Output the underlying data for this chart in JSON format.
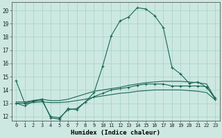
{
  "title": "",
  "xlabel": "Humidex (Indice chaleur)",
  "background_color": "#cce8e0",
  "grid_color": "#aad4cc",
  "line_color": "#1a6655",
  "xlim": [
    -0.5,
    23.5
  ],
  "ylim": [
    11.7,
    20.6
  ],
  "yticks": [
    12,
    13,
    14,
    15,
    16,
    17,
    18,
    19,
    20
  ],
  "xtick_labels": [
    "0",
    "1",
    "2",
    "3",
    "4",
    "5",
    "6",
    "7",
    "8",
    "9",
    "10",
    "11",
    "12",
    "13",
    "14",
    "15",
    "16",
    "17",
    "18",
    "19",
    "20",
    "21",
    "22",
    "23"
  ],
  "series1_x": [
    0,
    1,
    2,
    3,
    4,
    5,
    6,
    7,
    8,
    9,
    10,
    11,
    12,
    13,
    14,
    15,
    16,
    17,
    18,
    19,
    20,
    21,
    22,
    23
  ],
  "series1_y": [
    14.7,
    13.0,
    13.2,
    13.3,
    11.9,
    11.8,
    12.6,
    12.5,
    13.1,
    13.8,
    15.8,
    18.1,
    19.2,
    19.5,
    20.2,
    20.1,
    19.6,
    18.7,
    15.7,
    15.2,
    14.5,
    14.6,
    14.2,
    13.4
  ],
  "series2_x": [
    0,
    1,
    2,
    3,
    4,
    5,
    6,
    7,
    8,
    9,
    10,
    11,
    12,
    13,
    14,
    15,
    16,
    17,
    18,
    19,
    20,
    21,
    22,
    23
  ],
  "series2_y": [
    13.1,
    13.1,
    13.2,
    13.3,
    13.2,
    13.2,
    13.3,
    13.5,
    13.7,
    13.9,
    14.0,
    14.1,
    14.2,
    14.35,
    14.45,
    14.55,
    14.6,
    14.65,
    14.65,
    14.65,
    14.6,
    14.55,
    14.45,
    13.35
  ],
  "series3_x": [
    0,
    1,
    2,
    3,
    4,
    5,
    6,
    7,
    8,
    9,
    10,
    11,
    12,
    13,
    14,
    15,
    16,
    17,
    18,
    19,
    20,
    21,
    22,
    23
  ],
  "series3_y": [
    13.0,
    13.0,
    13.05,
    13.1,
    13.05,
    13.05,
    13.1,
    13.2,
    13.3,
    13.45,
    13.55,
    13.65,
    13.75,
    13.8,
    13.9,
    13.95,
    14.0,
    14.0,
    14.0,
    14.0,
    13.95,
    13.9,
    13.8,
    13.25
  ],
  "series4_x": [
    0,
    1,
    2,
    3,
    4,
    5,
    6,
    7,
    8,
    9,
    10,
    11,
    12,
    13,
    14,
    15,
    16,
    17,
    18,
    19,
    20,
    21,
    22,
    23
  ],
  "series4_y": [
    13.0,
    12.8,
    13.15,
    13.2,
    12.0,
    11.9,
    12.5,
    12.6,
    13.1,
    13.5,
    13.75,
    14.0,
    14.1,
    14.2,
    14.35,
    14.45,
    14.45,
    14.45,
    14.3,
    14.3,
    14.3,
    14.3,
    14.25,
    13.3
  ]
}
